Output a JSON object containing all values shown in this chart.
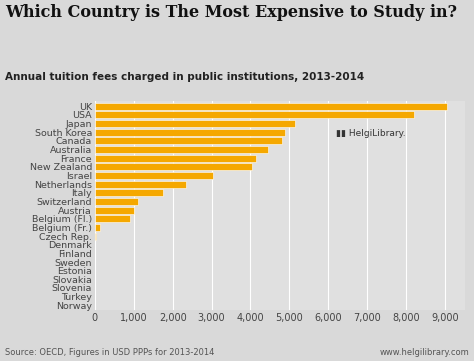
{
  "title": "Which Country is The Most Expensive to Study in?",
  "subtitle": "Annual tuition fees charged in public institutions, 2013-2014",
  "source": "Source: OECD, Figures in USD PPPs for 2013-2014",
  "website": "www.helgilibrary.com",
  "categories": [
    "UK",
    "USA",
    "Japan",
    "South Korea",
    "Canada",
    "Australia",
    "France",
    "New Zealand",
    "Israel",
    "Netherlands",
    "Italy",
    "Switzerland",
    "Austria",
    "Belgium (Fl.)",
    "Belgium (Fr.)",
    "Czech Rep.",
    "Denmark",
    "Finland",
    "Sweden",
    "Estonia",
    "Slovakia",
    "Slovenia",
    "Turkey",
    "Norway"
  ],
  "values": [
    9050,
    8202,
    5150,
    4900,
    4820,
    4450,
    4150,
    4050,
    3050,
    2350,
    1750,
    1100,
    1020,
    900,
    130,
    20,
    15,
    10,
    8,
    7,
    6,
    5,
    4,
    3
  ],
  "bar_color": "#F5A800",
  "bar_color2": "#D4880A",
  "bg_color": "#D9D9D9",
  "plot_bg_color": "#E0E0E0",
  "title_color": "#111111",
  "subtitle_color": "#222222",
  "source_color": "#555555",
  "xlim": [
    0,
    9500
  ],
  "xlabel_fontsize": 7,
  "ylabel_fontsize": 6.8,
  "title_fontsize": 11.5,
  "subtitle_fontsize": 7.5,
  "source_fontsize": 6,
  "grid_color": "#FFFFFF",
  "tick_color": "#444444"
}
